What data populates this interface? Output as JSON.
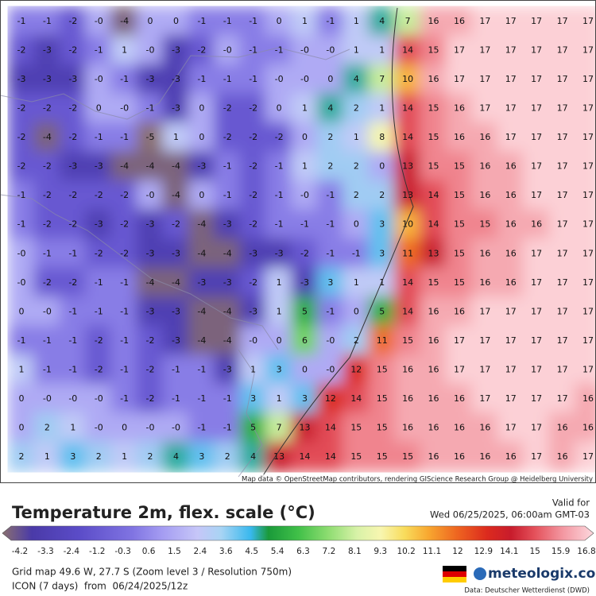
{
  "map": {
    "grid": [
      [
        "-1",
        "-1",
        "-2",
        "-0",
        "-4",
        "0",
        "0",
        "-1",
        "-1",
        "-1",
        "0",
        "1",
        "-1",
        "1",
        "4",
        "7",
        "16",
        "16",
        "17",
        "17",
        "17",
        "17",
        "17"
      ],
      [
        "-2",
        "-3",
        "-2",
        "-1",
        "1",
        "-0",
        "-3",
        "-2",
        "-0",
        "-1",
        "-1",
        "-0",
        "-0",
        "1",
        "1",
        "14",
        "15",
        "17",
        "17",
        "17",
        "17",
        "17",
        "17"
      ],
      [
        "-3",
        "-3",
        "-3",
        "-0",
        "-1",
        "-3",
        "-3",
        "-1",
        "-1",
        "-1",
        "-0",
        "-0",
        "0",
        "4",
        "7",
        "10",
        "16",
        "17",
        "17",
        "17",
        "17",
        "17",
        "17"
      ],
      [
        "-2",
        "-2",
        "-2",
        "0",
        "-0",
        "-1",
        "-3",
        "0",
        "-2",
        "-2",
        "0",
        "1",
        "4",
        "2",
        "1",
        "14",
        "15",
        "16",
        "17",
        "17",
        "17",
        "17",
        "17"
      ],
      [
        "-2",
        "-4",
        "-2",
        "-1",
        "-1",
        "-5",
        "1",
        "0",
        "-2",
        "-2",
        "-2",
        "0",
        "2",
        "1",
        "8",
        "14",
        "15",
        "16",
        "16",
        "17",
        "17",
        "17",
        "17"
      ],
      [
        "-2",
        "-2",
        "-3",
        "-3",
        "-4",
        "-4",
        "-4",
        "-3",
        "-1",
        "-2",
        "-1",
        "1",
        "2",
        "2",
        "0",
        "13",
        "15",
        "15",
        "16",
        "16",
        "17",
        "17",
        "17"
      ],
      [
        "-1",
        "-2",
        "-2",
        "-2",
        "-2",
        "-0",
        "-4",
        "0",
        "-1",
        "-2",
        "-1",
        "-0",
        "-1",
        "2",
        "2",
        "13",
        "14",
        "15",
        "16",
        "16",
        "17",
        "17",
        "17"
      ],
      [
        "-1",
        "-2",
        "-2",
        "-3",
        "-2",
        "-3",
        "-2",
        "-4",
        "-3",
        "-2",
        "-1",
        "-1",
        "-1",
        "0",
        "3",
        "10",
        "14",
        "15",
        "15",
        "16",
        "16",
        "17",
        "17"
      ],
      [
        "-0",
        "-1",
        "-1",
        "-2",
        "-2",
        "-3",
        "-3",
        "-4",
        "-4",
        "-3",
        "-3",
        "-2",
        "-1",
        "-1",
        "3",
        "11",
        "13",
        "15",
        "16",
        "16",
        "17",
        "17",
        "17"
      ],
      [
        "-0",
        "-2",
        "-2",
        "-1",
        "-1",
        "-4",
        "-4",
        "-3",
        "-3",
        "-2",
        "1",
        "-3",
        "3",
        "1",
        "1",
        "14",
        "15",
        "15",
        "16",
        "16",
        "17",
        "17",
        "17"
      ],
      [
        "0",
        "-0",
        "-1",
        "-1",
        "-1",
        "-3",
        "-3",
        "-4",
        "-4",
        "-3",
        "1",
        "5",
        "-1",
        "0",
        "5",
        "14",
        "16",
        "16",
        "17",
        "17",
        "17",
        "17",
        "17"
      ],
      [
        "-1",
        "-1",
        "-1",
        "-2",
        "-1",
        "-2",
        "-3",
        "-4",
        "-4",
        "-0",
        "0",
        "6",
        "-0",
        "2",
        "11",
        "15",
        "16",
        "17",
        "17",
        "17",
        "17",
        "17",
        "17"
      ],
      [
        "1",
        "-1",
        "-1",
        "-2",
        "-1",
        "-2",
        "-1",
        "-1",
        "-3",
        "1",
        "3",
        "0",
        "-0",
        "12",
        "15",
        "16",
        "16",
        "17",
        "17",
        "17",
        "17",
        "17",
        "17"
      ],
      [
        "0",
        "-0",
        "-0",
        "-0",
        "-1",
        "-2",
        "-1",
        "-1",
        "-1",
        "3",
        "1",
        "3",
        "12",
        "14",
        "15",
        "16",
        "16",
        "16",
        "17",
        "17",
        "17",
        "17",
        "16"
      ],
      [
        "0",
        "2",
        "1",
        "-0",
        "0",
        "-0",
        "-0",
        "-1",
        "-1",
        "5",
        "7",
        "13",
        "14",
        "15",
        "15",
        "16",
        "16",
        "16",
        "16",
        "17",
        "17",
        "16",
        "16"
      ],
      [
        "2",
        "1",
        "3",
        "2",
        "1",
        "2",
        "4",
        "3",
        "2",
        "4",
        "13",
        "14",
        "14",
        "15",
        "15",
        "15",
        "16",
        "16",
        "16",
        "16",
        "17",
        "16",
        "17"
      ]
    ],
    "attribution": "Map data © OpenStreetMap contributors, rendering GIScience Research Group @ Heidelberg University"
  },
  "legend": {
    "title": "Temperature 2m, flex. scale (°C)",
    "ticks": [
      "-4.2",
      "-3.3",
      "-2.4",
      "-1.2",
      "-0.3",
      "0.6",
      "1.5",
      "2.4",
      "3.6",
      "4.5",
      "5.4",
      "6.3",
      "7.2",
      "8.1",
      "9.3",
      "10.2",
      "11.1",
      "12",
      "12.9",
      "14.1",
      "15",
      "15.9",
      "16.8"
    ]
  },
  "valid": {
    "label": "Valid for",
    "time": "Wed 06/25/2025, 06:00am GMT-03"
  },
  "footer": {
    "grid_info": "Grid map 49.6 W, 27.7 S (Zoom level 3 / Resolution 750m)",
    "model": "ICON (7 days)  from  06/24/2025/12z",
    "brand": "meteologix.com",
    "source": "Data: Deutscher Wetterdienst (DWD)"
  }
}
